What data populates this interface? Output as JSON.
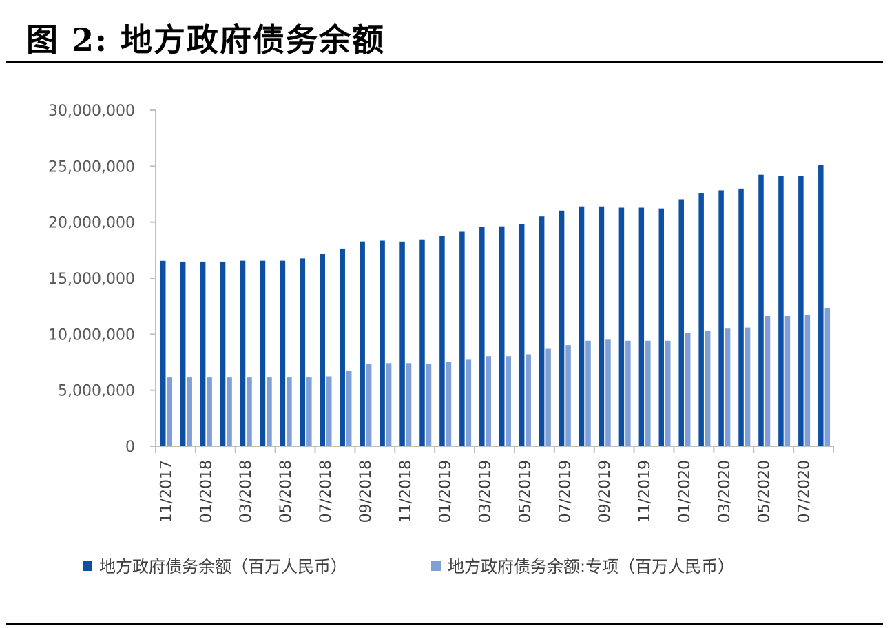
{
  "figure_title": "图 2: 地方政府债务余额",
  "colors": {
    "series1": "#0d4fa3",
    "series2": "#7f9fd6",
    "axis": "#bfbfbf"
  },
  "chart_data": {
    "type": "bar",
    "categories": [
      "11/2017",
      "12/2017",
      "01/2018",
      "02/2018",
      "03/2018",
      "04/2018",
      "05/2018",
      "06/2018",
      "07/2018",
      "08/2018",
      "09/2018",
      "10/2018",
      "11/2018",
      "12/2018",
      "01/2019",
      "02/2019",
      "03/2019",
      "04/2019",
      "05/2019",
      "06/2019",
      "07/2019",
      "08/2019",
      "09/2019",
      "10/2019",
      "11/2019",
      "12/2019",
      "01/2020",
      "02/2020",
      "03/2020",
      "04/2020",
      "05/2020",
      "06/2020",
      "07/2020",
      "08/2020"
    ],
    "xtick_labels": [
      "11/2017",
      "01/2018",
      "03/2018",
      "05/2018",
      "07/2018",
      "09/2018",
      "11/2018",
      "01/2019",
      "03/2019",
      "05/2019",
      "07/2019",
      "09/2019",
      "11/2019",
      "01/2020",
      "03/2020",
      "05/2020",
      "07/2020"
    ],
    "series": [
      {
        "name": "地方政府债务余额（百万人民币）",
        "values": [
          16550000,
          16480000,
          16480000,
          16480000,
          16560000,
          16560000,
          16560000,
          16760000,
          17150000,
          17650000,
          18280000,
          18350000,
          18270000,
          18460000,
          18750000,
          19150000,
          19550000,
          19630000,
          19820000,
          20520000,
          21040000,
          21410000,
          21410000,
          21300000,
          21300000,
          21230000,
          22040000,
          22560000,
          22840000,
          23000000,
          24240000,
          24140000,
          24140000,
          25100000
        ]
      },
      {
        "name": "地方政府债务余额:专项（百万人民币）",
        "values": [
          6140000,
          6140000,
          6140000,
          6140000,
          6140000,
          6140000,
          6140000,
          6140000,
          6240000,
          6700000,
          7320000,
          7420000,
          7420000,
          7320000,
          7520000,
          7720000,
          8040000,
          8040000,
          8210000,
          8700000,
          9030000,
          9420000,
          9510000,
          9420000,
          9420000,
          9420000,
          10140000,
          10320000,
          10500000,
          10600000,
          11620000,
          11620000,
          11700000,
          12300000
        ]
      }
    ],
    "yticks": [
      "30,000,000",
      "25,000,000",
      "20,000,000",
      "15,000,000",
      "10,000,000",
      "5,000,000",
      "0"
    ],
    "ylim": [
      0,
      30000000
    ],
    "xlabel": "",
    "ylabel": "",
    "legend_position": "bottom",
    "grid": false
  }
}
